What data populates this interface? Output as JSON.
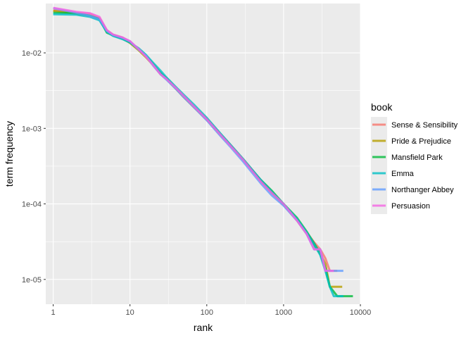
{
  "chart_data": {
    "type": "line",
    "title": "",
    "xlabel": "rank",
    "ylabel": "term frequency",
    "x_scale": "log10",
    "y_scale": "log10",
    "xlim": [
      0.8,
      10000
    ],
    "ylim": [
      4.7e-06,
      0.045
    ],
    "x_ticks": [
      {
        "value": 1,
        "label": "1"
      },
      {
        "value": 10,
        "label": "10"
      },
      {
        "value": 100,
        "label": "100"
      },
      {
        "value": 1000,
        "label": "1000"
      },
      {
        "value": 10000,
        "label": "10000"
      }
    ],
    "y_ticks": [
      {
        "value": 1e-05,
        "label": "1e-05"
      },
      {
        "value": 0.0001,
        "label": "1e-04"
      },
      {
        "value": 0.001,
        "label": "1e-03"
      },
      {
        "value": 0.01,
        "label": "1e-02"
      }
    ],
    "grid": true,
    "panel_background": "#ebebeb",
    "legend": {
      "title": "book",
      "position": "right"
    },
    "series": [
      {
        "name": "Sense & Sensibility",
        "color": "#F8766D",
        "points": [
          [
            1,
            0.0365
          ],
          [
            2,
            0.034
          ],
          [
            3,
            0.033
          ],
          [
            4,
            0.029
          ],
          [
            5,
            0.02
          ],
          [
            6,
            0.0175
          ],
          [
            8,
            0.016
          ],
          [
            10,
            0.014
          ],
          [
            13,
            0.011
          ],
          [
            16,
            0.009
          ],
          [
            20,
            0.007
          ],
          [
            25,
            0.0053
          ],
          [
            30,
            0.0046
          ],
          [
            40,
            0.0034
          ],
          [
            50,
            0.0027
          ],
          [
            70,
            0.0019
          ],
          [
            100,
            0.00135
          ],
          [
            150,
            0.00085
          ],
          [
            200,
            0.00062
          ],
          [
            300,
            0.00039
          ],
          [
            500,
            0.00021
          ],
          [
            700,
            0.000145
          ],
          [
            1000,
            0.0001
          ],
          [
            1500,
            6.2e-05
          ],
          [
            2000,
            4.2e-05
          ],
          [
            2500,
            3.1e-05
          ],
          [
            3000,
            2.5e-05
          ],
          [
            3500,
            1.9e-05
          ],
          [
            4000,
            1.3e-05
          ],
          [
            4500,
            1.3e-05
          ],
          [
            5000,
            1.3e-05
          ]
        ]
      },
      {
        "name": "Pride & Prejudice",
        "color": "#B79F00",
        "points": [
          [
            1,
            0.036
          ],
          [
            2,
            0.033
          ],
          [
            3,
            0.031
          ],
          [
            4,
            0.0285
          ],
          [
            5,
            0.019
          ],
          [
            6,
            0.017
          ],
          [
            8,
            0.0155
          ],
          [
            10,
            0.0135
          ],
          [
            13,
            0.0108
          ],
          [
            16,
            0.0088
          ],
          [
            20,
            0.0069
          ],
          [
            25,
            0.0052
          ],
          [
            30,
            0.0045
          ],
          [
            40,
            0.0033
          ],
          [
            50,
            0.0026
          ],
          [
            70,
            0.00185
          ],
          [
            100,
            0.0013
          ],
          [
            150,
            0.00082
          ],
          [
            200,
            0.0006
          ],
          [
            300,
            0.00038
          ],
          [
            500,
            0.0002
          ],
          [
            700,
            0.00014
          ],
          [
            1000,
            9.8e-05
          ],
          [
            1500,
            6e-05
          ],
          [
            2000,
            4e-05
          ],
          [
            2500,
            2.8e-05
          ],
          [
            3000,
            2.2e-05
          ],
          [
            3500,
            1.6e-05
          ],
          [
            4000,
            8e-06
          ],
          [
            4500,
            8e-06
          ],
          [
            5000,
            8e-06
          ],
          [
            5800,
            8e-06
          ]
        ]
      },
      {
        "name": "Mansfield Park",
        "color": "#00BA38",
        "points": [
          [
            1,
            0.034
          ],
          [
            2,
            0.0335
          ],
          [
            3,
            0.031
          ],
          [
            4,
            0.028
          ],
          [
            5,
            0.0185
          ],
          [
            6,
            0.017
          ],
          [
            8,
            0.0155
          ],
          [
            10,
            0.0138
          ],
          [
            13,
            0.0112
          ],
          [
            16,
            0.0092
          ],
          [
            20,
            0.0071
          ],
          [
            25,
            0.0054
          ],
          [
            30,
            0.0046
          ],
          [
            40,
            0.0034
          ],
          [
            50,
            0.0027
          ],
          [
            70,
            0.0019
          ],
          [
            100,
            0.00132
          ],
          [
            150,
            0.00084
          ],
          [
            200,
            0.00061
          ],
          [
            300,
            0.00038
          ],
          [
            500,
            0.00021
          ],
          [
            700,
            0.00015
          ],
          [
            1000,
            0.0001
          ],
          [
            1500,
            6.5e-05
          ],
          [
            2000,
            4.3e-05
          ],
          [
            2500,
            3e-05
          ],
          [
            3000,
            2.2e-05
          ],
          [
            3500,
            1.4e-05
          ],
          [
            4000,
            8e-06
          ],
          [
            5000,
            6e-06
          ],
          [
            8000,
            6e-06
          ]
        ]
      },
      {
        "name": "Emma",
        "color": "#00BFC4",
        "points": [
          [
            1,
            0.0325
          ],
          [
            2,
            0.032
          ],
          [
            3,
            0.03
          ],
          [
            4,
            0.027
          ],
          [
            5,
            0.019
          ],
          [
            6,
            0.0168
          ],
          [
            8,
            0.0152
          ],
          [
            10,
            0.0137
          ],
          [
            13,
            0.0115
          ],
          [
            16,
            0.0095
          ],
          [
            20,
            0.0074
          ],
          [
            25,
            0.0058
          ],
          [
            30,
            0.0047
          ],
          [
            40,
            0.0035
          ],
          [
            50,
            0.0028
          ],
          [
            70,
            0.002
          ],
          [
            100,
            0.00138
          ],
          [
            150,
            0.00086
          ],
          [
            200,
            0.00062
          ],
          [
            300,
            0.00039
          ],
          [
            500,
            0.00021
          ],
          [
            700,
            0.000145
          ],
          [
            1000,
            0.0001
          ],
          [
            1500,
            6.3e-05
          ],
          [
            2000,
            4.2e-05
          ],
          [
            2500,
            2.9e-05
          ],
          [
            3000,
            2.1e-05
          ],
          [
            3500,
            1.3e-05
          ],
          [
            4000,
            8e-06
          ],
          [
            4500,
            6e-06
          ],
          [
            6000,
            6e-06
          ]
        ]
      },
      {
        "name": "Northanger Abbey",
        "color": "#619CFF",
        "points": [
          [
            1,
            0.039
          ],
          [
            2,
            0.034
          ],
          [
            3,
            0.031
          ],
          [
            4,
            0.028
          ],
          [
            5,
            0.0195
          ],
          [
            6,
            0.0172
          ],
          [
            8,
            0.0158
          ],
          [
            10,
            0.0142
          ],
          [
            13,
            0.011
          ],
          [
            16,
            0.0092
          ],
          [
            20,
            0.0068
          ],
          [
            25,
            0.0052
          ],
          [
            30,
            0.0044
          ],
          [
            40,
            0.0033
          ],
          [
            50,
            0.0026
          ],
          [
            70,
            0.00185
          ],
          [
            100,
            0.00128
          ],
          [
            150,
            0.0008
          ],
          [
            200,
            0.00058
          ],
          [
            300,
            0.00036
          ],
          [
            500,
            0.00019
          ],
          [
            700,
            0.00013
          ],
          [
            1000,
            9.5e-05
          ],
          [
            1500,
            6e-05
          ],
          [
            2000,
            4e-05
          ],
          [
            2500,
            2.5e-05
          ],
          [
            3000,
            2.5e-05
          ],
          [
            3500,
            1.3e-05
          ],
          [
            4000,
            1.3e-05
          ],
          [
            5000,
            1.3e-05
          ],
          [
            6000,
            1.3e-05
          ]
        ]
      },
      {
        "name": "Persuasion",
        "color": "#F564E3",
        "points": [
          [
            1,
            0.0395
          ],
          [
            2,
            0.035
          ],
          [
            3,
            0.0335
          ],
          [
            4,
            0.03
          ],
          [
            5,
            0.02
          ],
          [
            6,
            0.0175
          ],
          [
            8,
            0.016
          ],
          [
            10,
            0.0143
          ],
          [
            13,
            0.0112
          ],
          [
            16,
            0.009
          ],
          [
            20,
            0.0069
          ],
          [
            25,
            0.0052
          ],
          [
            30,
            0.0045
          ],
          [
            40,
            0.0034
          ],
          [
            50,
            0.0027
          ],
          [
            70,
            0.0019
          ],
          [
            100,
            0.00132
          ],
          [
            150,
            0.00083
          ],
          [
            200,
            0.0006
          ],
          [
            300,
            0.00038
          ],
          [
            500,
            0.0002
          ],
          [
            700,
            0.00014
          ],
          [
            1000,
            0.0001
          ],
          [
            1500,
            6e-05
          ],
          [
            2000,
            4e-05
          ],
          [
            2500,
            2.5e-05
          ],
          [
            3000,
            2.5e-05
          ],
          [
            3500,
            1.3e-05
          ],
          [
            4000,
            1.3e-05
          ],
          [
            4500,
            1.3e-05
          ]
        ]
      }
    ]
  }
}
